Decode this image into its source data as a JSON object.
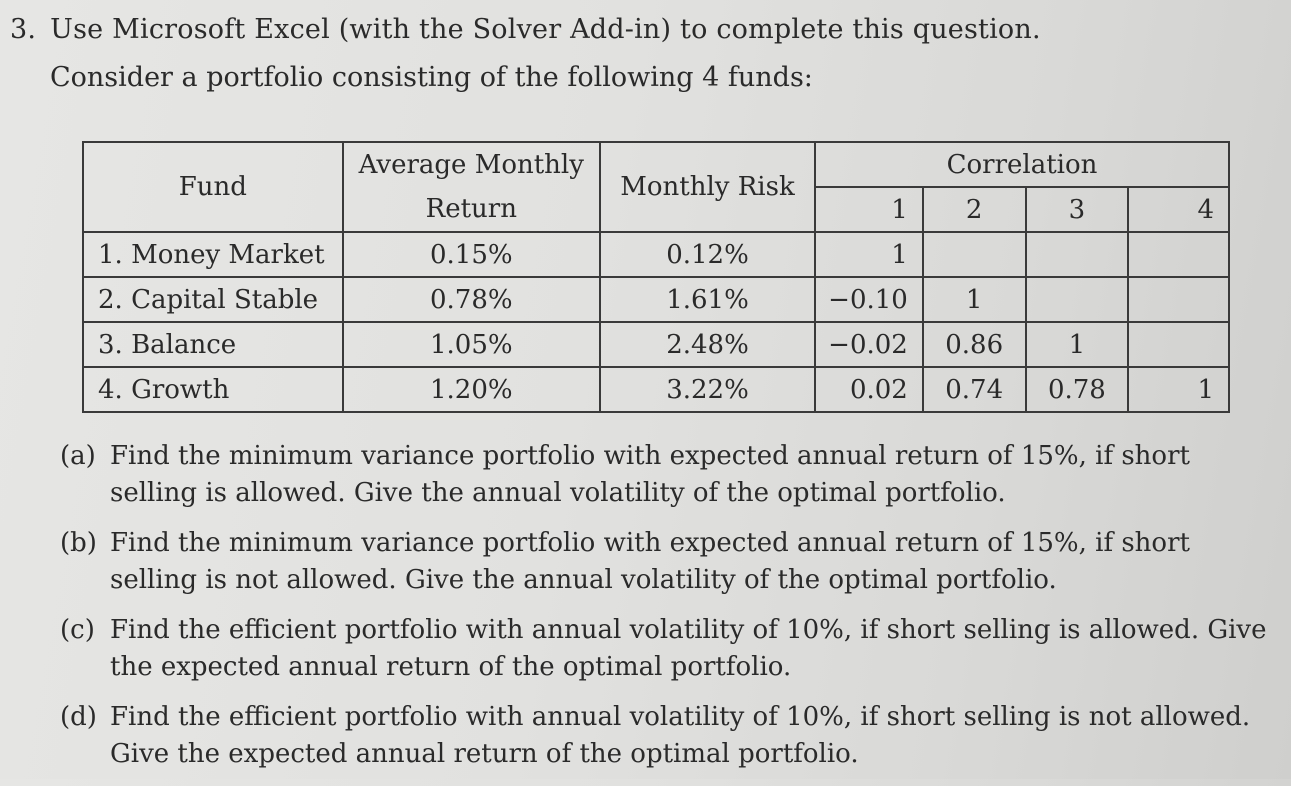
{
  "question": {
    "number": "3.",
    "instruction": "Use Microsoft Excel (with the Solver Add-in) to complete this question.",
    "intro": "Consider a portfolio consisting of the following 4 funds:"
  },
  "table": {
    "headers": {
      "fund": "Fund",
      "avg_return_line1": "Average Monthly",
      "avg_return_line2": "Return",
      "risk": "Monthly Risk",
      "correlation": "Correlation",
      "corr_cols": [
        "1",
        "2",
        "3",
        "4"
      ]
    },
    "rows": [
      {
        "fund": "1. Money Market",
        "ret": "0.15%",
        "risk": "0.12%",
        "corr": [
          "1",
          "",
          "",
          ""
        ]
      },
      {
        "fund": "2. Capital Stable",
        "ret": "0.78%",
        "risk": "1.61%",
        "corr": [
          "−0.10",
          "1",
          "",
          ""
        ]
      },
      {
        "fund": "3. Balance",
        "ret": "1.05%",
        "risk": "2.48%",
        "corr": [
          "−0.02",
          "0.86",
          "1",
          ""
        ]
      },
      {
        "fund": "4. Growth",
        "ret": "1.20%",
        "risk": "3.22%",
        "corr": [
          "0.02",
          "0.74",
          "0.78",
          "1"
        ]
      }
    ]
  },
  "parts": [
    {
      "label": "(a)",
      "text": "Find the minimum variance portfolio with expected annual return of 15%, if short selling is allowed. Give the annual volatility of the optimal portfolio."
    },
    {
      "label": "(b)",
      "text": "Find the minimum variance portfolio with expected annual return of 15%, if short selling is not allowed. Give the annual volatility of the optimal portfolio."
    },
    {
      "label": "(c)",
      "text": "Find the efficient portfolio with annual volatility of 10%, if short selling is allowed. Give the expected annual return of the optimal portfolio."
    },
    {
      "label": "(d)",
      "text": "Find the efficient portfolio with annual volatility of 10%, if short selling is not allowed. Give the expected annual return of the optimal portfolio."
    }
  ]
}
